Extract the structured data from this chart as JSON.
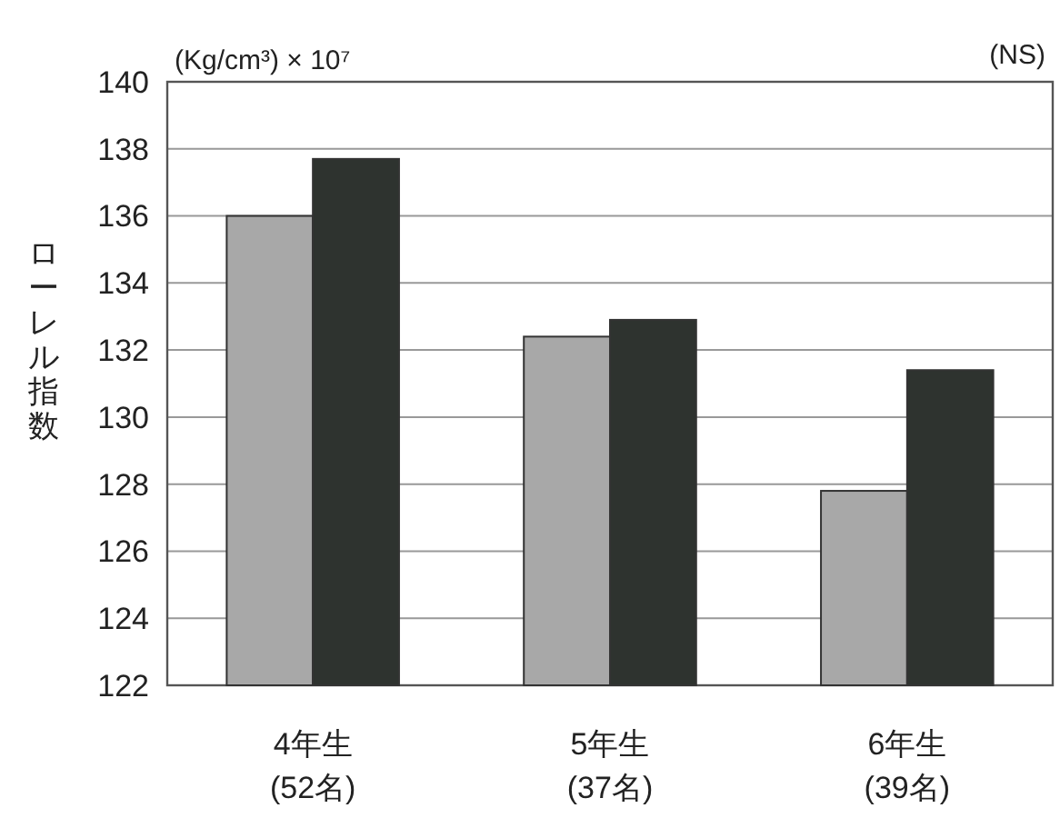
{
  "chart_data": {
    "type": "bar",
    "ylabel": "ローレル指数",
    "categories": [
      "4年生\n(52名)",
      "5年生\n(37名)",
      "6年生\n(39名)"
    ],
    "series": [
      {
        "color": "#a8a8a8",
        "values": [
          136.0,
          132.4,
          127.8
        ]
      },
      {
        "color": "#2e332f",
        "values": [
          137.7,
          132.9,
          131.4
        ]
      }
    ],
    "ylim": [
      122,
      140
    ],
    "yticks": [
      122,
      124,
      126,
      128,
      130,
      132,
      134,
      136,
      138,
      140
    ],
    "grid": "y",
    "annotations": [
      "(Kg/cm³) × 10⁷",
      "(NS)"
    ]
  }
}
